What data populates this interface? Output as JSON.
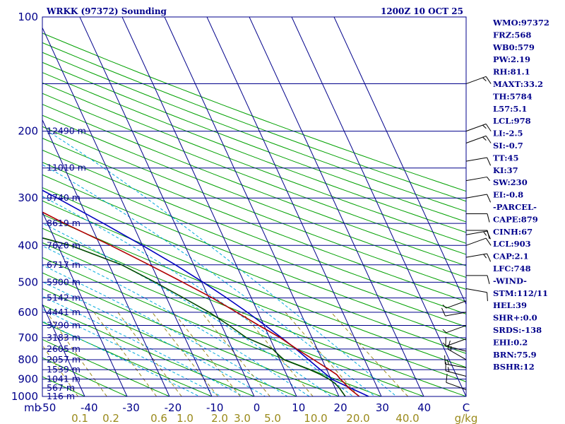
{
  "header": {
    "station": "WRKK (97372) Sounding",
    "time": "1200Z 10 OCT 25"
  },
  "indices": [
    "WMO:97372",
    "FRZ:568",
    "WB0:579",
    "PW:2.19",
    "RH:81.1",
    "MAXT:33.2",
    "TH:5784",
    "L57:5.1",
    "LCL:978",
    "LI:-2.5",
    "SI:-0.7",
    "TT:45",
    "KI:37",
    "SW:230",
    "EI:-0.8",
    "-PARCEL-",
    "CAPE:879",
    "CINH:67",
    "LCL:903",
    "CAP:2.1",
    "LFC:748",
    "-WIND-",
    "STM:112/11",
    "HEL:39",
    "SHR+:0.0",
    "SRDS:-138",
    "EHI:0.2",
    "BRN:75.9",
    "BSHR:12"
  ],
  "chart_data": {
    "type": "line",
    "title": "WRKK (97372) Sounding",
    "diagram": "skew-T log-p",
    "pressure_unit": "mb",
    "temperature_unit": "C",
    "mixing_ratio_unit": "g/kg",
    "ylim": [
      1000,
      100
    ],
    "xlim": [
      -50,
      50
    ],
    "y_scale": "log (reversed)",
    "pressure_ticks": [
      100,
      200,
      300,
      400,
      500,
      600,
      700,
      800,
      900,
      1000
    ],
    "temperature_ticks": [
      "-50",
      "-40",
      "-30",
      "-20",
      "-10",
      "0",
      "10",
      "20",
      "30",
      "40",
      "C"
    ],
    "mixing_ratio_ticks": [
      "0.1",
      "0.2",
      "0.6",
      "1.0",
      "2.0",
      "3.0",
      "5.0",
      "10.0",
      "20.0",
      "40.0",
      "g/kg"
    ],
    "heights": [
      {
        "p": 200,
        "label": "12490 m"
      },
      {
        "p": 250,
        "label": "11010 m"
      },
      {
        "p": 300,
        "label": "9740 m"
      },
      {
        "p": 350,
        "label": "8619 m"
      },
      {
        "p": 400,
        "label": "7620 m"
      },
      {
        "p": 450,
        "label": "6717 m"
      },
      {
        "p": 500,
        "label": "5900 m"
      },
      {
        "p": 550,
        "label": "5142 m"
      },
      {
        "p": 600,
        "label": "4441 m"
      },
      {
        "p": 650,
        "label": "3790 m"
      },
      {
        "p": 700,
        "label": "3183 m"
      },
      {
        "p": 750,
        "label": "2605 m"
      },
      {
        "p": 800,
        "label": "2057 m"
      },
      {
        "p": 850,
        "label": "1539 m"
      },
      {
        "p": 900,
        "label": "1041 m"
      },
      {
        "p": 950,
        "label": "567 m"
      },
      {
        "p": 1000,
        "label": "116 m"
      }
    ],
    "temperature": [
      {
        "p": 1000,
        "t": 24.8
      },
      {
        "p": 990,
        "t": 24.5
      },
      {
        "p": 950,
        "t": 23.2
      },
      {
        "p": 925,
        "t": 22.8
      },
      {
        "p": 900,
        "t": 22.2
      },
      {
        "p": 875,
        "t": 21.8
      },
      {
        "p": 850,
        "t": 20.6
      },
      {
        "p": 800,
        "t": 18.0
      },
      {
        "p": 750,
        "t": 15.2
      },
      {
        "p": 700,
        "t": 12.5
      },
      {
        "p": 650,
        "t": 8.8
      },
      {
        "p": 600,
        "t": 5.0
      },
      {
        "p": 550,
        "t": 0.8
      },
      {
        "p": 500,
        "t": -4.5
      },
      {
        "p": 450,
        "t": -10.5
      },
      {
        "p": 400,
        "t": -17.5
      },
      {
        "p": 350,
        "t": -26.0
      },
      {
        "p": 300,
        "t": -35.0
      },
      {
        "p": 250,
        "t": -45.5
      },
      {
        "p": 200,
        "t": -55.5
      },
      {
        "p": 170,
        "t": -62.5
      },
      {
        "p": 150,
        "t": -68.5
      }
    ],
    "dewpoint": [
      {
        "p": 1000,
        "t": 21.5
      },
      {
        "p": 950,
        "t": 21.0
      },
      {
        "p": 925,
        "t": 20.5
      },
      {
        "p": 900,
        "t": 19.5
      },
      {
        "p": 875,
        "t": 18.0
      },
      {
        "p": 850,
        "t": 16.0
      },
      {
        "p": 800,
        "t": 11.0
      },
      {
        "p": 775,
        "t": 10.2
      },
      {
        "p": 750,
        "t": 9.5
      },
      {
        "p": 700,
        "t": 4.5
      },
      {
        "p": 650,
        "t": 1.8
      },
      {
        "p": 600,
        "t": -1.5
      },
      {
        "p": 550,
        "t": -6.0
      },
      {
        "p": 500,
        "t": -11.0
      },
      {
        "p": 450,
        "t": -17.0
      },
      {
        "p": 400,
        "t": -27.0
      },
      {
        "p": 370,
        "t": -37.0
      },
      {
        "p": 350,
        "t": -45.0
      },
      {
        "p": 300,
        "t": -47.0
      },
      {
        "p": 290,
        "t": -49.5
      },
      {
        "p": 250,
        "t": -57.0
      },
      {
        "p": 200,
        "t": -69.0
      },
      {
        "p": 160,
        "t": -78.0
      }
    ],
    "parcel": [
      {
        "p": 1000,
        "t": 27.0
      },
      {
        "p": 950,
        "t": 23.6
      },
      {
        "p": 903,
        "t": 20.3
      },
      {
        "p": 850,
        "t": 18.5
      },
      {
        "p": 800,
        "t": 16.8
      },
      {
        "p": 748,
        "t": 14.9
      },
      {
        "p": 700,
        "t": 12.8
      },
      {
        "p": 650,
        "t": 10.3
      },
      {
        "p": 600,
        "t": 7.5
      },
      {
        "p": 550,
        "t": 4.2
      },
      {
        "p": 500,
        "t": 0.3
      },
      {
        "p": 450,
        "t": -4.3
      },
      {
        "p": 400,
        "t": -10.0
      },
      {
        "p": 350,
        "t": -16.8
      },
      {
        "p": 300,
        "t": -25.0
      },
      {
        "p": 250,
        "t": -35.3
      },
      {
        "p": 200,
        "t": -48.0
      },
      {
        "p": 150,
        "t": -63.0
      },
      {
        "p": 100,
        "t": -82.0
      }
    ],
    "wind_barbs": [
      {
        "p": 960,
        "dir": 290,
        "kt": 10
      },
      {
        "p": 885,
        "dir": 285,
        "kt": 15
      },
      {
        "p": 840,
        "dir": 280,
        "kt": 15
      },
      {
        "p": 800,
        "dir": 300,
        "kt": 15
      },
      {
        "p": 760,
        "dir": 285,
        "kt": 10
      },
      {
        "p": 705,
        "dir": 250,
        "kt": 5
      },
      {
        "p": 650,
        "dir": 250,
        "kt": 5
      },
      {
        "p": 600,
        "dir": 260,
        "kt": 10
      },
      {
        "p": 560,
        "dir": 250,
        "kt": 5
      },
      {
        "p": 520,
        "dir": 100,
        "kt": 10
      },
      {
        "p": 480,
        "dir": 90,
        "kt": 10
      },
      {
        "p": 430,
        "dir": 80,
        "kt": 15
      },
      {
        "p": 400,
        "dir": 70,
        "kt": 10
      },
      {
        "p": 375,
        "dir": 80,
        "kt": 15
      },
      {
        "p": 365,
        "dir": 90,
        "kt": 10
      },
      {
        "p": 330,
        "dir": 90,
        "kt": 10
      },
      {
        "p": 300,
        "dir": 80,
        "kt": 10
      },
      {
        "p": 270,
        "dir": 80,
        "kt": 5
      },
      {
        "p": 240,
        "dir": 80,
        "kt": 10
      },
      {
        "p": 215,
        "dir": 70,
        "kt": 15
      },
      {
        "p": 200,
        "dir": 70,
        "kt": 15
      },
      {
        "p": 150,
        "dir": 70,
        "kt": 15
      }
    ]
  },
  "colors": {
    "frame": "#00008b",
    "isobar": "#00008b",
    "isotherm": "#00008b",
    "dry_adiabat": "#00a000",
    "moist_adiabat": "#00aadd",
    "mixing_ratio": "#9a8a1a",
    "temperature": "#b00000",
    "dewpoint": "#004a00",
    "parcel": "#0000c0",
    "barb": "#000000"
  }
}
